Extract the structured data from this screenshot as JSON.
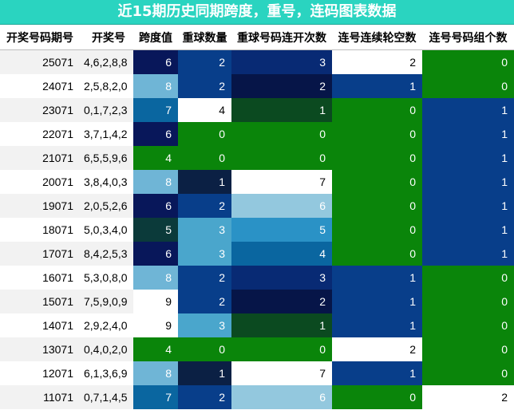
{
  "title": "近15期历史同期跨度，重号，连码图表数据",
  "headers": [
    "开奖号码期号",
    "开奖号",
    "跨度值",
    "重球数量",
    "重球号码连开次数",
    "连号连续轮空数",
    "连号号码组个数"
  ],
  "colors": {
    "title_bg": "#2ad4c0",
    "green": "#0a850a",
    "navy_dark": "#08175a",
    "navy": "#083e8a",
    "midnight": "#0b2044",
    "blue": "#0a66a0",
    "steel": "#2a92c6",
    "light_blue": "#6fb5d6",
    "pale_blue": "#93c8de",
    "dark_green": "#0b4a20",
    "teal_dark": "#0b3a3a",
    "white": "#ffffff"
  },
  "rows": [
    {
      "period": "25071",
      "numbers": "4,6,2,8,8",
      "span": "6",
      "repeat_count": "2",
      "repeat_streak": "3",
      "consec_gap": "2",
      "consec_groups": "0",
      "bg": [
        "#08175a",
        "#083e8a",
        "#082a74",
        "#ffffff",
        "#0a850a"
      ]
    },
    {
      "period": "24071",
      "numbers": "2,5,8,2,0",
      "span": "8",
      "repeat_count": "2",
      "repeat_streak": "2",
      "consec_gap": "1",
      "consec_groups": "0",
      "bg": [
        "#6fb5d6",
        "#083e8a",
        "#061548",
        "#083e8a",
        "#0a850a"
      ]
    },
    {
      "period": "23071",
      "numbers": "0,1,7,2,3",
      "span": "7",
      "repeat_count": "4",
      "repeat_streak": "1",
      "consec_gap": "0",
      "consec_groups": "1",
      "bg": [
        "#0a66a0",
        "#ffffff",
        "#0b4a20",
        "#0a850a",
        "#083e8a"
      ]
    },
    {
      "period": "22071",
      "numbers": "3,7,1,4,2",
      "span": "6",
      "repeat_count": "0",
      "repeat_streak": "0",
      "consec_gap": "0",
      "consec_groups": "1",
      "bg": [
        "#08175a",
        "#0a850a",
        "#0a850a",
        "#0a850a",
        "#083e8a"
      ]
    },
    {
      "period": "21071",
      "numbers": "6,5,5,9,6",
      "span": "4",
      "repeat_count": "0",
      "repeat_streak": "0",
      "consec_gap": "0",
      "consec_groups": "1",
      "bg": [
        "#0a850a",
        "#0a850a",
        "#0a850a",
        "#0a850a",
        "#083e8a"
      ]
    },
    {
      "period": "20071",
      "numbers": "3,8,4,0,3",
      "span": "8",
      "repeat_count": "1",
      "repeat_streak": "7",
      "consec_gap": "0",
      "consec_groups": "1",
      "bg": [
        "#6fb5d6",
        "#0b2044",
        "#ffffff",
        "#0a850a",
        "#083e8a"
      ]
    },
    {
      "period": "19071",
      "numbers": "2,0,5,2,6",
      "span": "6",
      "repeat_count": "2",
      "repeat_streak": "6",
      "consec_gap": "0",
      "consec_groups": "1",
      "bg": [
        "#08175a",
        "#083e8a",
        "#93c8de",
        "#0a850a",
        "#083e8a"
      ]
    },
    {
      "period": "18071",
      "numbers": "5,0,3,4,0",
      "span": "5",
      "repeat_count": "3",
      "repeat_streak": "5",
      "consec_gap": "0",
      "consec_groups": "1",
      "bg": [
        "#0b3a3a",
        "#4aa6cc",
        "#2a92c6",
        "#0a850a",
        "#083e8a"
      ]
    },
    {
      "period": "17071",
      "numbers": "8,4,2,5,3",
      "span": "6",
      "repeat_count": "3",
      "repeat_streak": "4",
      "consec_gap": "0",
      "consec_groups": "1",
      "bg": [
        "#08175a",
        "#4aa6cc",
        "#0a66a0",
        "#0a850a",
        "#083e8a"
      ]
    },
    {
      "period": "16071",
      "numbers": "5,3,0,8,0",
      "span": "8",
      "repeat_count": "2",
      "repeat_streak": "3",
      "consec_gap": "1",
      "consec_groups": "0",
      "bg": [
        "#6fb5d6",
        "#083e8a",
        "#082a74",
        "#083e8a",
        "#0a850a"
      ]
    },
    {
      "period": "15071",
      "numbers": "7,5,9,0,9",
      "span": "9",
      "repeat_count": "2",
      "repeat_streak": "2",
      "consec_gap": "1",
      "consec_groups": "0",
      "bg": [
        "#ffffff",
        "#083e8a",
        "#061548",
        "#083e8a",
        "#0a850a"
      ]
    },
    {
      "period": "14071",
      "numbers": "2,9,2,4,0",
      "span": "9",
      "repeat_count": "3",
      "repeat_streak": "1",
      "consec_gap": "1",
      "consec_groups": "0",
      "bg": [
        "#ffffff",
        "#4aa6cc",
        "#0b4a20",
        "#083e8a",
        "#0a850a"
      ]
    },
    {
      "period": "13071",
      "numbers": "0,4,0,2,0",
      "span": "4",
      "repeat_count": "0",
      "repeat_streak": "0",
      "consec_gap": "2",
      "consec_groups": "0",
      "bg": [
        "#0a850a",
        "#0a850a",
        "#0a850a",
        "#ffffff",
        "#0a850a"
      ]
    },
    {
      "period": "12071",
      "numbers": "6,1,3,6,9",
      "span": "8",
      "repeat_count": "1",
      "repeat_streak": "7",
      "consec_gap": "1",
      "consec_groups": "0",
      "bg": [
        "#6fb5d6",
        "#0b2044",
        "#ffffff",
        "#083e8a",
        "#0a850a"
      ]
    },
    {
      "period": "11071",
      "numbers": "0,7,1,4,5",
      "span": "7",
      "repeat_count": "2",
      "repeat_streak": "6",
      "consec_gap": "0",
      "consec_groups": "2",
      "bg": [
        "#0a66a0",
        "#083e8a",
        "#93c8de",
        "#0a850a",
        "#ffffff"
      ]
    }
  ]
}
